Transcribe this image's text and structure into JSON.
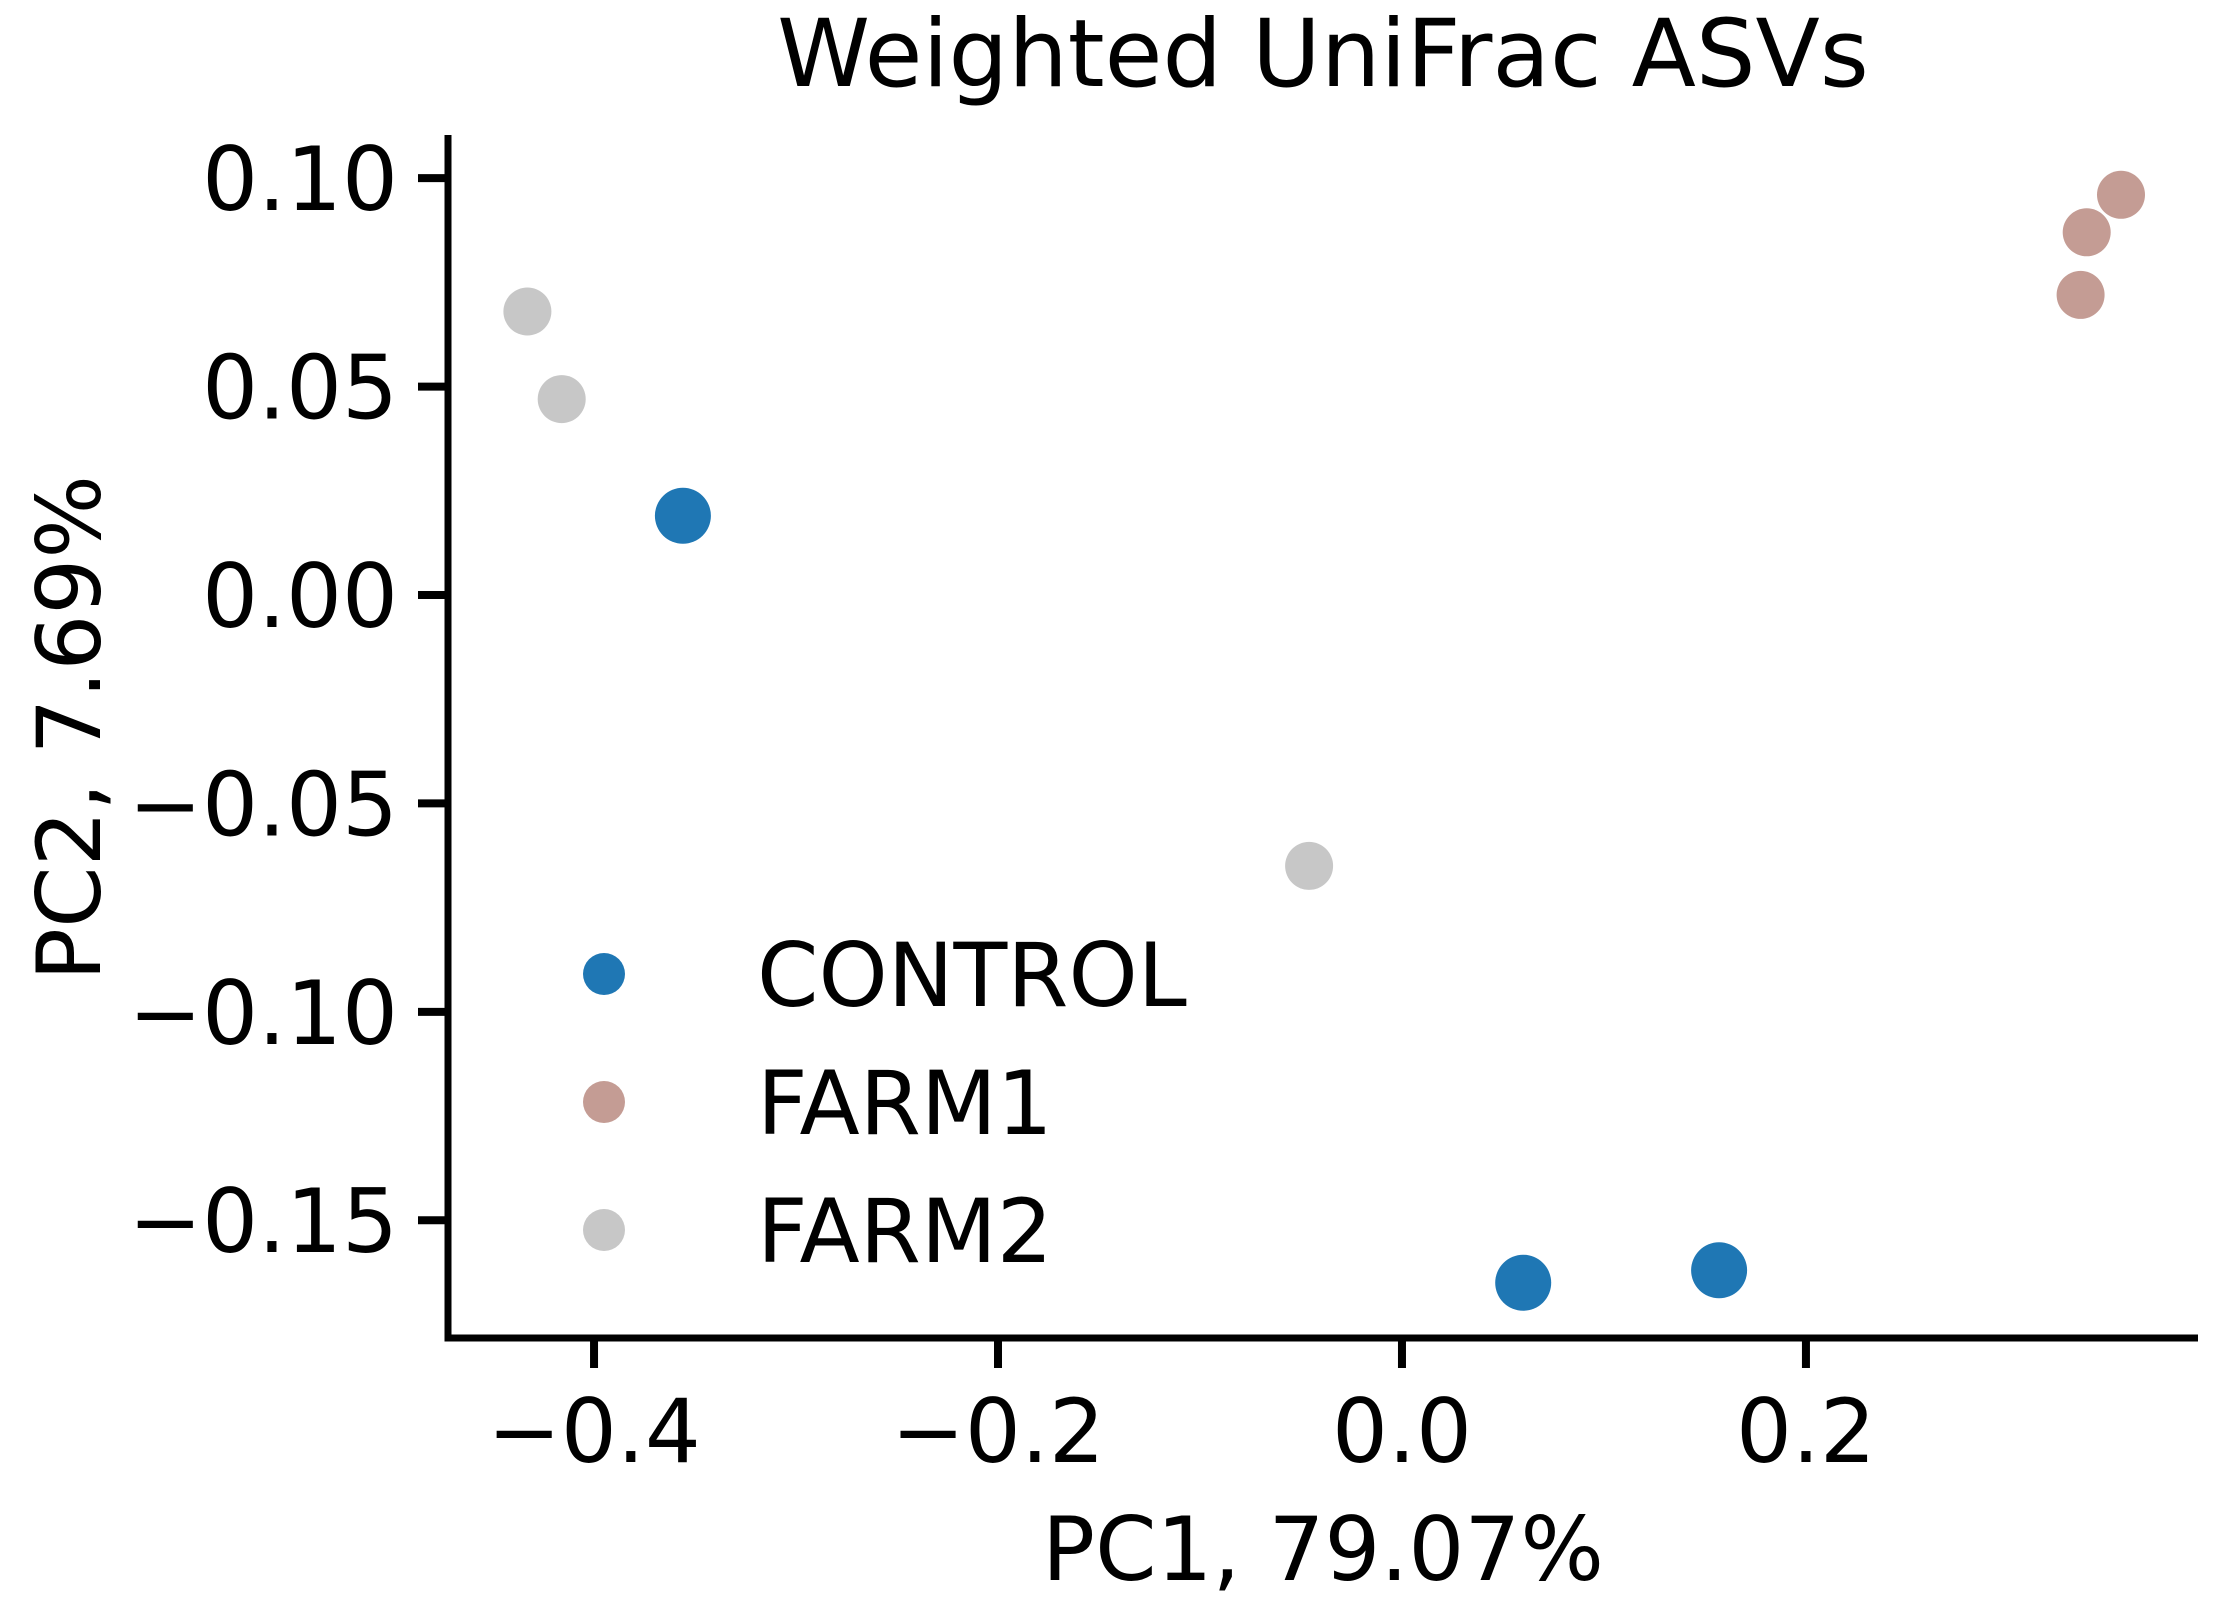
{
  "background": "#ffffff",
  "text_color": "#000000",
  "spine_color": "#000000",
  "chart_data": {
    "type": "scatter",
    "title": "Weighted UniFrac ASVs",
    "xlabel": "PC1, 79.07%",
    "ylabel": "PC2, 7.69%",
    "grid": false,
    "xlim": [
      -0.4723,
      0.3941
    ],
    "ylim": [
      -0.17825,
      0.11035
    ],
    "xticks": [
      {
        "value": -0.4,
        "label": "−0.4"
      },
      {
        "value": -0.2,
        "label": "−0.2"
      },
      {
        "value": 0.0,
        "label": "0.0"
      },
      {
        "value": 0.2,
        "label": "0.2"
      }
    ],
    "yticks": [
      {
        "value": 0.1,
        "label": "0.10"
      },
      {
        "value": 0.05,
        "label": "0.05"
      },
      {
        "value": 0.0,
        "label": "0.00"
      },
      {
        "value": -0.05,
        "label": "−0.05"
      },
      {
        "value": -0.1,
        "label": "−0.10"
      },
      {
        "value": -0.15,
        "label": "−0.15"
      }
    ],
    "series": [
      {
        "name": "CONTROL",
        "color": "#1f77b4",
        "marker_radius": 28,
        "points": [
          {
            "x": -0.356,
            "y": 0.019
          },
          {
            "x": 0.06,
            "y": -0.165
          },
          {
            "x": 0.157,
            "y": -0.162
          }
        ]
      },
      {
        "name": "FARM1",
        "color": "#c49c94",
        "marker_radius": 24,
        "points": [
          {
            "x": 0.356,
            "y": 0.096
          },
          {
            "x": 0.339,
            "y": 0.087
          },
          {
            "x": 0.336,
            "y": 0.072
          }
        ]
      },
      {
        "name": "FARM2",
        "color": "#c7c7c7",
        "marker_radius": 24,
        "points": [
          {
            "x": -0.433,
            "y": 0.068
          },
          {
            "x": -0.416,
            "y": 0.047
          },
          {
            "x": -0.046,
            "y": -0.065
          }
        ]
      }
    ],
    "legend": {
      "position": "inside lower-left",
      "items": [
        {
          "label": "CONTROL",
          "color": "#1f77b4"
        },
        {
          "label": "FARM1",
          "color": "#c49c94"
        },
        {
          "label": "FARM2",
          "color": "#c7c7c7"
        }
      ]
    }
  }
}
